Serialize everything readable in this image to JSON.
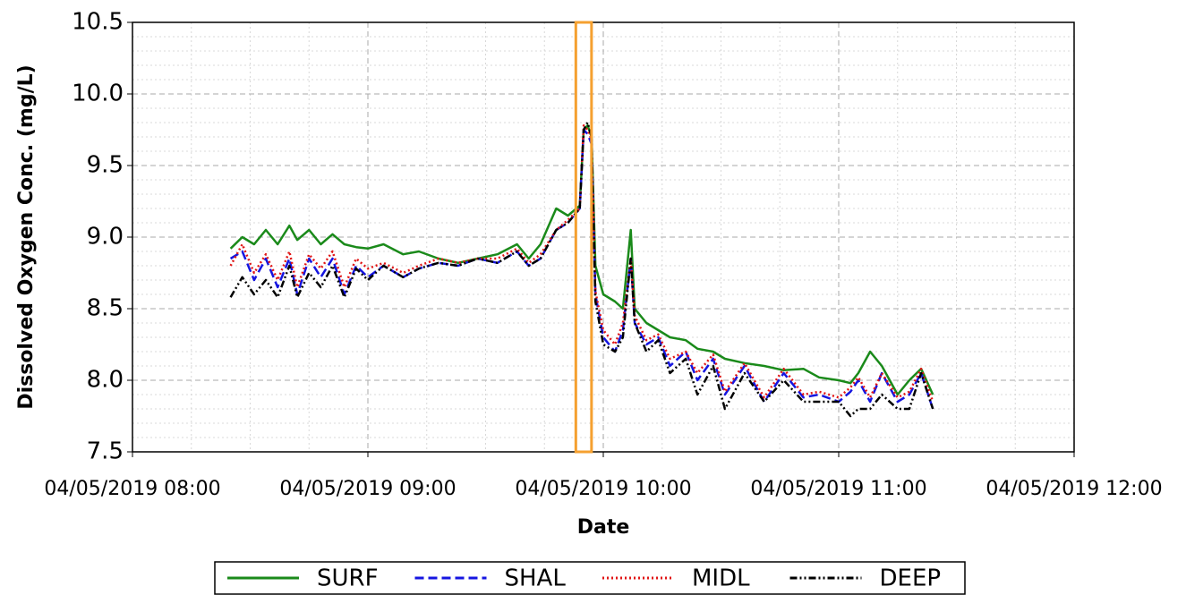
{
  "chart_data": {
    "type": "line",
    "ylabel": "Dissolved Oxygen Conc. (mg/L)",
    "xlabel": "Date",
    "x": [
      "2019-04-05 08:25",
      "2019-04-05 08:28",
      "2019-04-05 08:31",
      "2019-04-05 08:34",
      "2019-04-05 08:37",
      "2019-04-05 08:40",
      "2019-04-05 08:42",
      "2019-04-05 08:45",
      "2019-04-05 08:48",
      "2019-04-05 08:51",
      "2019-04-05 08:54",
      "2019-04-05 08:57",
      "2019-04-05 09:00",
      "2019-04-05 09:04",
      "2019-04-05 09:09",
      "2019-04-05 09:13",
      "2019-04-05 09:18",
      "2019-04-05 09:23",
      "2019-04-05 09:28",
      "2019-04-05 09:33",
      "2019-04-05 09:38",
      "2019-04-05 09:41",
      "2019-04-05 09:44",
      "2019-04-05 09:48",
      "2019-04-05 09:51",
      "2019-04-05 09:54",
      "2019-04-05 09:55",
      "2019-04-05 09:56",
      "2019-04-05 09:57",
      "2019-04-05 09:58",
      "2019-04-05 10:00",
      "2019-04-05 10:03",
      "2019-04-05 10:05",
      "2019-04-05 10:07",
      "2019-04-05 10:08",
      "2019-04-05 10:11",
      "2019-04-05 10:14",
      "2019-04-05 10:17",
      "2019-04-05 10:21",
      "2019-04-05 10:24",
      "2019-04-05 10:28",
      "2019-04-05 10:31",
      "2019-04-05 10:36",
      "2019-04-05 10:41",
      "2019-04-05 10:46",
      "2019-04-05 10:51",
      "2019-04-05 10:55",
      "2019-04-05 11:00",
      "2019-04-05 11:03",
      "2019-04-05 11:05",
      "2019-04-05 11:08",
      "2019-04-05 11:11",
      "2019-04-05 11:15",
      "2019-04-05 11:18",
      "2019-04-05 11:21",
      "2019-04-05 11:24"
    ],
    "series": [
      {
        "name": "SURF",
        "color": "#1a8a1a",
        "dash": "solid",
        "values": [
          8.92,
          9.0,
          8.95,
          9.05,
          8.95,
          9.08,
          8.98,
          9.05,
          8.95,
          9.02,
          8.95,
          8.93,
          8.92,
          8.95,
          8.88,
          8.9,
          8.85,
          8.82,
          8.85,
          8.88,
          8.95,
          8.85,
          8.95,
          9.2,
          9.15,
          9.22,
          9.75,
          9.78,
          9.7,
          8.8,
          8.6,
          8.55,
          8.5,
          9.05,
          8.5,
          8.4,
          8.35,
          8.3,
          8.28,
          8.22,
          8.2,
          8.15,
          8.12,
          8.1,
          8.07,
          8.08,
          8.02,
          8.0,
          7.98,
          8.05,
          8.2,
          8.1,
          7.9,
          8.0,
          8.08,
          7.9
        ]
      },
      {
        "name": "SHAL",
        "color": "#1515e0",
        "dash": "dashed",
        "values": [
          8.85,
          8.9,
          8.7,
          8.85,
          8.65,
          8.85,
          8.6,
          8.85,
          8.72,
          8.85,
          8.6,
          8.8,
          8.72,
          8.8,
          8.72,
          8.78,
          8.82,
          8.8,
          8.85,
          8.82,
          8.9,
          8.8,
          8.85,
          9.05,
          9.1,
          9.2,
          9.75,
          9.72,
          9.65,
          8.6,
          8.3,
          8.2,
          8.35,
          8.85,
          8.4,
          8.25,
          8.3,
          8.1,
          8.2,
          8.0,
          8.15,
          7.9,
          8.1,
          7.85,
          8.05,
          7.88,
          7.9,
          7.85,
          7.92,
          8.0,
          7.85,
          8.05,
          7.85,
          7.9,
          8.05,
          7.8
        ]
      },
      {
        "name": "MIDL",
        "color": "#e01515",
        "dash": "dotted",
        "values": [
          8.8,
          8.95,
          8.75,
          8.88,
          8.7,
          8.9,
          8.65,
          8.88,
          8.78,
          8.9,
          8.65,
          8.85,
          8.78,
          8.82,
          8.75,
          8.8,
          8.85,
          8.82,
          8.85,
          8.85,
          8.92,
          8.82,
          8.88,
          9.05,
          9.12,
          9.2,
          9.78,
          9.75,
          9.68,
          8.62,
          8.35,
          8.25,
          8.4,
          8.85,
          8.45,
          8.28,
          8.32,
          8.15,
          8.2,
          8.05,
          8.18,
          7.92,
          8.12,
          7.88,
          8.08,
          7.9,
          7.92,
          7.88,
          7.95,
          8.02,
          7.88,
          8.05,
          7.88,
          7.92,
          8.08,
          7.85
        ]
      },
      {
        "name": "DEEP",
        "color": "#000000",
        "dash": "dashdot",
        "values": [
          8.58,
          8.72,
          8.6,
          8.7,
          8.58,
          8.8,
          8.58,
          8.75,
          8.65,
          8.8,
          8.58,
          8.78,
          8.7,
          8.8,
          8.72,
          8.78,
          8.82,
          8.8,
          8.85,
          8.82,
          8.9,
          8.8,
          8.85,
          9.05,
          9.1,
          9.2,
          9.75,
          9.8,
          9.7,
          8.55,
          8.25,
          8.2,
          8.3,
          8.85,
          8.4,
          8.2,
          8.28,
          8.05,
          8.15,
          7.9,
          8.1,
          7.8,
          8.05,
          7.85,
          8.0,
          7.85,
          7.85,
          7.85,
          7.75,
          7.8,
          7.8,
          7.9,
          7.8,
          7.8,
          8.05,
          7.8
        ]
      }
    ],
    "xlim": [
      "2019-04-05 08:00",
      "2019-04-05 12:00"
    ],
    "xticks": [
      {
        "value": "2019-04-05 08:00",
        "label": "04/05/2019 08:00"
      },
      {
        "value": "2019-04-05 09:00",
        "label": "04/05/2019 09:00"
      },
      {
        "value": "2019-04-05 10:00",
        "label": "04/05/2019 10:00"
      },
      {
        "value": "2019-04-05 11:00",
        "label": "04/05/2019 11:00"
      },
      {
        "value": "2019-04-05 12:00",
        "label": "04/05/2019 12:00"
      }
    ],
    "ylim": [
      7.5,
      10.5
    ],
    "yticks": [
      7.5,
      {
        "value": 8,
        "label": "8.0"
      },
      8.5,
      {
        "value": 9,
        "label": "9.0"
      },
      9.5,
      {
        "value": 10,
        "label": "10.0"
      },
      10.5
    ],
    "grid": true,
    "minor_grid": true,
    "legend": "bottom",
    "highlight": {
      "xrange": [
        "2019-04-05 09:53",
        "2019-04-05 09:57"
      ],
      "color": "#f5a030"
    }
  }
}
